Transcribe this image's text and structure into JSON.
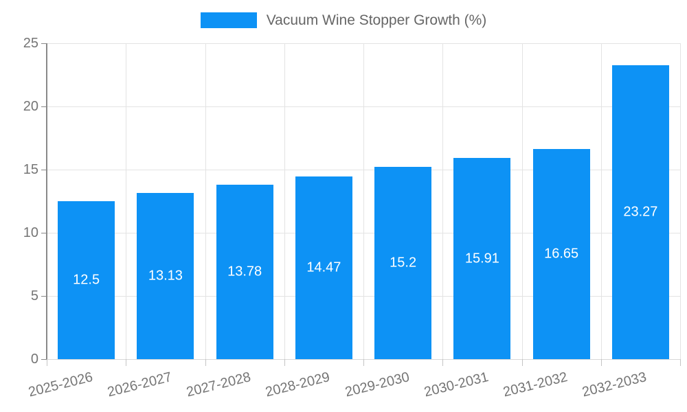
{
  "legend": {
    "label": "Vacuum Wine Stopper Growth (%)"
  },
  "chart_data": {
    "type": "bar",
    "title": "Vacuum Wine Stopper Growth (%)",
    "categories": [
      "2025-2026",
      "2026-2027",
      "2027-2028",
      "2028-2029",
      "2029-2030",
      "2030-2031",
      "2031-2032",
      "2032-2033"
    ],
    "values": [
      12.5,
      13.13,
      13.78,
      14.47,
      15.2,
      15.91,
      16.65,
      23.27
    ],
    "value_labels": [
      "12.5",
      "13.13",
      "13.78",
      "14.47",
      "15.2",
      "15.91",
      "16.65",
      "23.27"
    ],
    "xlabel": "",
    "ylabel": "",
    "ylim": [
      0,
      25
    ],
    "yticks": [
      0,
      5,
      10,
      15,
      20,
      25
    ],
    "grid": true,
    "legend_position": "top",
    "bar_color": "#0D92F5",
    "bar_label_color": "#ffffff",
    "grid_color": "#e3e3e3",
    "axis_line_color": "#898989",
    "baseline_color": "#d7d7d7",
    "tick_text_color": "#757575",
    "legend_text_color": "#666666"
  }
}
